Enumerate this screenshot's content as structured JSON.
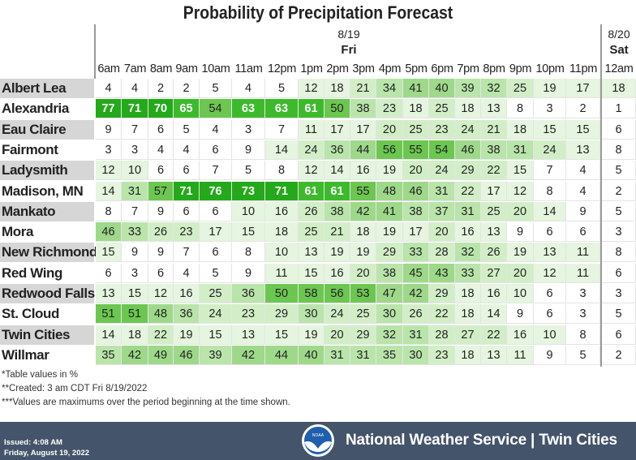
{
  "title": "Probability of Precipitation Forecast",
  "dates": [
    {
      "date": "8/19",
      "day": "Fri"
    },
    {
      "date": "8/20",
      "day": "Sat"
    }
  ],
  "times": [
    "6am",
    "7am",
    "8am",
    "9am",
    "10am",
    "11am",
    "12pm",
    "1pm",
    "2pm",
    "3pm",
    "4pm",
    "5pm",
    "6pm",
    "7pm",
    "8pm",
    "9pm",
    "10pm",
    "11pm",
    "12am"
  ],
  "rows": [
    {
      "name": "Albert Lea",
      "values": [
        4,
        4,
        2,
        2,
        5,
        4,
        5,
        12,
        18,
        21,
        34,
        41,
        40,
        39,
        32,
        25,
        19,
        17,
        18
      ]
    },
    {
      "name": "Alexandria",
      "values": [
        77,
        71,
        70,
        65,
        54,
        63,
        63,
        61,
        50,
        38,
        23,
        18,
        25,
        18,
        13,
        8,
        3,
        2,
        1
      ]
    },
    {
      "name": "Eau Claire",
      "values": [
        9,
        7,
        6,
        5,
        4,
        3,
        7,
        11,
        17,
        17,
        20,
        25,
        23,
        24,
        21,
        18,
        15,
        15,
        6
      ]
    },
    {
      "name": "Fairmont",
      "values": [
        3,
        3,
        4,
        4,
        6,
        9,
        14,
        24,
        36,
        44,
        56,
        55,
        54,
        46,
        38,
        31,
        24,
        13,
        8
      ]
    },
    {
      "name": "Ladysmith",
      "values": [
        12,
        10,
        6,
        6,
        7,
        5,
        8,
        12,
        14,
        16,
        19,
        20,
        24,
        29,
        22,
        15,
        7,
        4,
        5
      ]
    },
    {
      "name": "Madison, MN",
      "values": [
        14,
        31,
        57,
        71,
        76,
        73,
        71,
        61,
        61,
        55,
        48,
        46,
        31,
        22,
        17,
        12,
        8,
        4,
        2
      ]
    },
    {
      "name": "Mankato",
      "values": [
        8,
        7,
        9,
        6,
        6,
        10,
        16,
        26,
        38,
        42,
        41,
        38,
        37,
        31,
        25,
        20,
        14,
        9,
        5
      ]
    },
    {
      "name": "Mora",
      "values": [
        46,
        33,
        26,
        23,
        17,
        15,
        18,
        25,
        21,
        18,
        19,
        17,
        20,
        16,
        13,
        9,
        6,
        6,
        3
      ]
    },
    {
      "name": "New Richmond",
      "values": [
        15,
        9,
        9,
        7,
        6,
        8,
        10,
        13,
        19,
        19,
        29,
        33,
        28,
        32,
        26,
        19,
        13,
        11,
        8
      ]
    },
    {
      "name": "Red Wing",
      "values": [
        6,
        3,
        6,
        4,
        5,
        9,
        11,
        15,
        16,
        20,
        38,
        45,
        43,
        33,
        27,
        20,
        12,
        11,
        6
      ]
    },
    {
      "name": "Redwood Falls",
      "values": [
        13,
        15,
        12,
        16,
        25,
        36,
        50,
        58,
        56,
        53,
        47,
        42,
        29,
        18,
        16,
        10,
        6,
        3,
        3
      ]
    },
    {
      "name": "St. Cloud",
      "values": [
        51,
        51,
        48,
        36,
        24,
        23,
        29,
        30,
        24,
        25,
        30,
        26,
        22,
        18,
        14,
        9,
        6,
        3,
        5
      ]
    },
    {
      "name": "Twin Cities",
      "values": [
        14,
        18,
        22,
        19,
        15,
        13,
        15,
        19,
        20,
        29,
        32,
        31,
        28,
        27,
        22,
        16,
        10,
        8,
        6
      ]
    },
    {
      "name": "Willmar",
      "values": [
        35,
        42,
        49,
        46,
        39,
        42,
        44,
        40,
        31,
        31,
        35,
        30,
        23,
        18,
        13,
        11,
        9,
        5,
        2
      ]
    }
  ],
  "color_scale": [
    "#ffffff",
    "#e5f5df",
    "#d2eec7",
    "#b9e4aa",
    "#9ed98a",
    "#6cc751",
    "#3dba2b",
    "#24a91a"
  ],
  "notes": [
    "*Table values in %",
    "**Created: 3 am CDT Fri 8/19/2022",
    "***Values are maximums over the period beginning at the time shown."
  ],
  "footer": {
    "issued": "Issued: 4:08 AM",
    "issued_date": "Friday, August 19, 2022",
    "org": "National Weather Service | Twin Cities",
    "logo_text": "NOAA"
  }
}
